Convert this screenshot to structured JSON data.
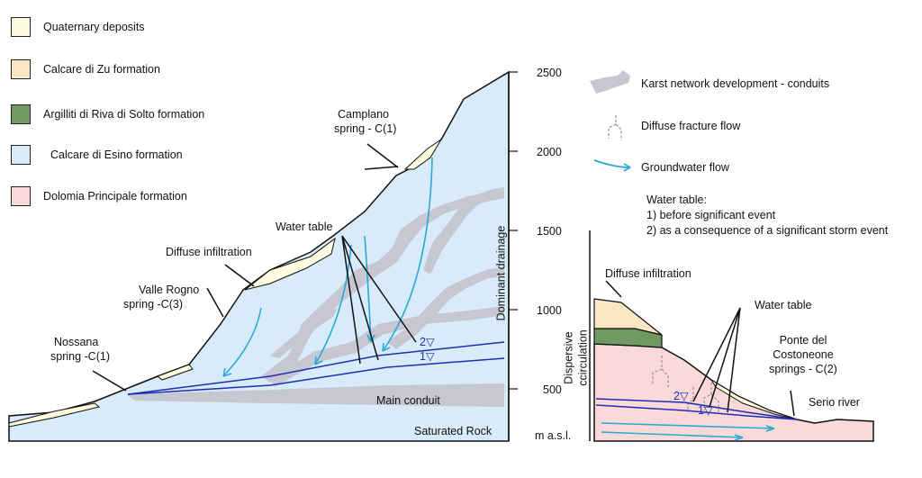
{
  "legend": {
    "items": [
      {
        "label": "Quaternary deposits",
        "color": "#fdfbe0"
      },
      {
        "label": "Calcare di Zu formation",
        "color": "#fbe7c3"
      },
      {
        "label": "Argilliti di Riva di Solto formation",
        "color": "#6f9a62"
      },
      {
        "label": "Calcare di Esino formation",
        "color": "#d8ebfb"
      },
      {
        "label": "Dolomia Principale formation",
        "color": "#fbd9d9"
      }
    ],
    "symbols": [
      {
        "label": "Karst network development - conduits",
        "icon": "conduit-icon"
      },
      {
        "label": "Diffuse fracture flow",
        "icon": "fracture-flow-icon"
      },
      {
        "label": "Groundwater flow",
        "icon": "groundwater-arrow-icon"
      }
    ],
    "water_table_note": {
      "title": "Water table:",
      "line1": "1) before significant event",
      "line2": "2) as a consequence of a significant storm event"
    }
  },
  "axis": {
    "unit": "m a.s.l.",
    "ticks": [
      "2500",
      "2000",
      "1500",
      "1000",
      "500"
    ],
    "side_label_upper": "Dominant drainage",
    "side_label_lower_1": "Dispersive",
    "side_label_lower_2": "ccirculation"
  },
  "left_section": {
    "campiano_1": "Camplano",
    "campiano_2": "spring - C(1)",
    "water_table": "Water table",
    "diffuse_infiltration": "Diffuse infiltration",
    "valle_rogno_1": "Valle Rogno",
    "valle_rogno_2": "spring -C(3)",
    "nossana_1": "Nossana",
    "nossana_2": "spring -C(1)",
    "wt2": "2▽",
    "wt1": "1▽",
    "main_conduit": "Main conduit",
    "saturated_rock": "Saturated Rock"
  },
  "right_section": {
    "diffuse_infiltration": "Diffuse infiltration",
    "water_table": "Water table",
    "ponte_1": "Ponte del",
    "ponte_2": "Costoneone",
    "ponte_3": "springs - C(2)",
    "serio": "Serio river",
    "wt2": "2▽",
    "wt1": "1▽"
  },
  "colors": {
    "outline": "#111111",
    "quaternary": "#fdfbe0",
    "zu": "#fbe7c3",
    "riva": "#6f9a62",
    "esino": "#d8ebfb",
    "dolomia": "#fbd9d9",
    "conduit": "#c7c7d2",
    "groundwater": "#2aa8d8",
    "water_table_line": "#1f2eb0",
    "fracture": "#9a9a9a"
  }
}
